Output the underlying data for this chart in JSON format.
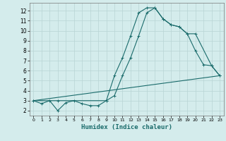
{
  "xlabel": "Humidex (Indice chaleur)",
  "xlim": [
    -0.5,
    23.5
  ],
  "ylim": [
    1.5,
    12.8
  ],
  "yticks": [
    2,
    3,
    4,
    5,
    6,
    7,
    8,
    9,
    10,
    11,
    12
  ],
  "xticks": [
    0,
    1,
    2,
    3,
    4,
    5,
    6,
    7,
    8,
    9,
    10,
    11,
    12,
    13,
    14,
    15,
    16,
    17,
    18,
    19,
    20,
    21,
    22,
    23
  ],
  "bg_color": "#d4ecec",
  "grid_color": "#b8d4d4",
  "line_color": "#1a6b6b",
  "line1_x": [
    0,
    1,
    2,
    3,
    4,
    5,
    6,
    7,
    8,
    9,
    10,
    11,
    12,
    13,
    14,
    15,
    16,
    17,
    18,
    19,
    20,
    21,
    22,
    23
  ],
  "line1_y": [
    3.0,
    2.7,
    3.0,
    2.0,
    2.8,
    3.0,
    2.7,
    2.5,
    2.5,
    3.0,
    3.5,
    5.5,
    7.3,
    9.5,
    11.8,
    12.3,
    11.2,
    10.6,
    10.4,
    9.7,
    8.0,
    6.6,
    6.5,
    5.5
  ],
  "line2_x": [
    0,
    3,
    9,
    10,
    11,
    12,
    13,
    14,
    15,
    16,
    17,
    18,
    19,
    20,
    22,
    23
  ],
  "line2_y": [
    3.0,
    3.0,
    3.0,
    5.5,
    7.3,
    9.5,
    11.8,
    12.3,
    12.3,
    11.2,
    10.6,
    10.4,
    9.7,
    9.7,
    6.5,
    5.5
  ],
  "line3_x": [
    0,
    23
  ],
  "line3_y": [
    3.0,
    5.5
  ]
}
